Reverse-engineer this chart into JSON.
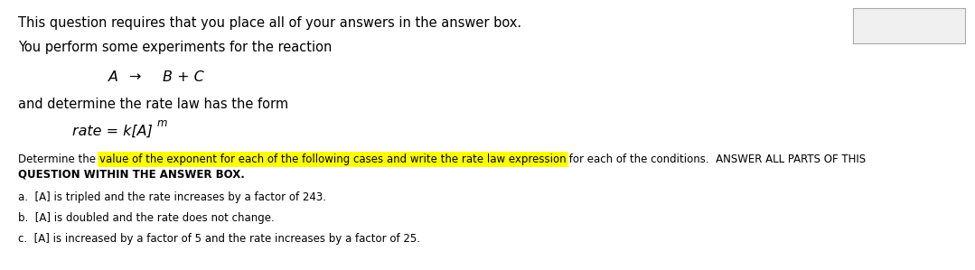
{
  "bg_color": "#ffffff",
  "line1": "This question requires that you place all of your answers in the answer box.",
  "line2": "You perform some experiments for the reaction",
  "reaction_A": "A",
  "reaction_arrow": "→",
  "reaction_B": "B + C",
  "line3": "and determine the rate law has the form",
  "rate_law_prefix": "rate = k[A]",
  "rate_law_exp": "m",
  "determine_normal1": "Determine the ",
  "determine_highlight": "value of the exponent for each of the following cases and write the rate law expression",
  "determine_normal2": " for each of the conditions.  ANSWER ALL PARTS OF THIS",
  "determine_line2": "QUESTION WITHIN THE ANSWER BOX.",
  "part_a": "a.  [A] is tripled and the rate increases by a factor of 243.",
  "part_b": "b.  [A] is doubled and the rate does not change.",
  "part_c": "c.  [A] is increased by a factor of 5 and the rate increases by a factor of 25.",
  "highlight_color": "#ffff00",
  "text_color": "#000000",
  "font_size": 10.5,
  "font_size_small": 8.5,
  "font_size_super": 7.5
}
